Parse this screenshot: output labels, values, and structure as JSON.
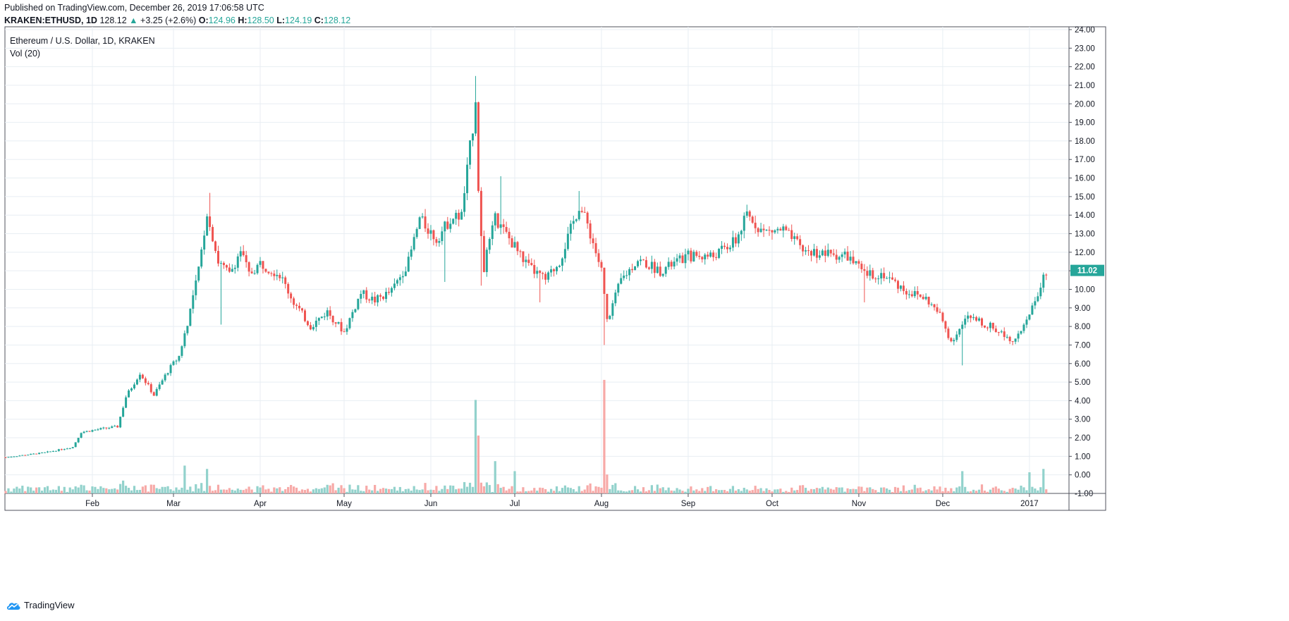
{
  "header": {
    "published": "Published on TradingView.com, December 26, 2019 17:06:58 UTC",
    "symbol": "KRAKEN:ETHUSD, 1D",
    "last": "128.12",
    "change_arrow": "▲",
    "change": "+3.25 (+2.6%)",
    "o_label": "O:",
    "o": "124.96",
    "h_label": "H:",
    "h": "128.50",
    "l_label": "L:",
    "l": "124.19",
    "c_label": "C:",
    "c": "128.12"
  },
  "legend": {
    "title": "Ethereum / U.S. Dollar, 1D, KRAKEN",
    "volume": "Vol (20)"
  },
  "footer": {
    "brand": "TradingView",
    "icon": "tradingview-cloud-icon"
  },
  "colors": {
    "up": "#26a69a",
    "down": "#ef5350",
    "up_vol": "#92d2cc",
    "down_vol": "#f7a9a7",
    "grid": "#e8eef3",
    "axis": "#131722"
  },
  "chart_data": {
    "type": "candlestick",
    "ylim": [
      -1,
      24
    ],
    "y_ticks": [
      "24.00",
      "23.00",
      "22.00",
      "21.00",
      "20.00",
      "19.00",
      "18.00",
      "17.00",
      "16.00",
      "15.00",
      "14.00",
      "13.00",
      "12.00",
      "11.00",
      "10.00",
      "9.00",
      "8.00",
      "7.00",
      "6.00",
      "5.00",
      "4.00",
      "3.00",
      "2.00",
      "1.00",
      "0.00",
      "-1.00"
    ],
    "y_tick_values": [
      24,
      23,
      22,
      21,
      20,
      19,
      18,
      17,
      16,
      15,
      14,
      13,
      12,
      11,
      10,
      9,
      8,
      7,
      6,
      5,
      4,
      3,
      2,
      1,
      0,
      -1
    ],
    "x_ticks": [
      "Feb",
      "Mar",
      "Apr",
      "May",
      "Jun",
      "Jul",
      "Aug",
      "Sep",
      "Oct",
      "Nov",
      "Dec",
      "2017"
    ],
    "x_tick_dates": [
      "2016-02-01",
      "2016-03-01",
      "2016-04-01",
      "2016-05-01",
      "2016-06-01",
      "2016-07-01",
      "2016-08-01",
      "2016-09-01",
      "2016-10-01",
      "2016-11-01",
      "2016-12-01",
      "2017-01-01"
    ],
    "last_price_label": "11.02",
    "last_price": 11.02,
    "x_range": [
      "2016-01-01",
      "2017-01-07"
    ],
    "price_path": [
      [
        "2016-01-01",
        0.95
      ],
      [
        "2016-01-15",
        1.2
      ],
      [
        "2016-01-25",
        1.5
      ],
      [
        "2016-01-28",
        2.3
      ],
      [
        "2016-02-05",
        2.5
      ],
      [
        "2016-02-10",
        2.6
      ],
      [
        "2016-02-13",
        4.2
      ],
      [
        "2016-02-18",
        5.5
      ],
      [
        "2016-02-23",
        4.3
      ],
      [
        "2016-02-28",
        5.6
      ],
      [
        "2016-03-03",
        6.4
      ],
      [
        "2016-03-06",
        8.2
      ],
      [
        "2016-03-10",
        11.0
      ],
      [
        "2016-03-13",
        14.2
      ],
      [
        "2016-03-17",
        11.5
      ],
      [
        "2016-03-21",
        10.8
      ],
      [
        "2016-03-25",
        12.1
      ],
      [
        "2016-03-28",
        10.8
      ],
      [
        "2016-04-01",
        11.4
      ],
      [
        "2016-04-08",
        10.8
      ],
      [
        "2016-04-13",
        9.3
      ],
      [
        "2016-04-19",
        8.0
      ],
      [
        "2016-04-25",
        8.8
      ],
      [
        "2016-05-01",
        7.7
      ],
      [
        "2016-05-07",
        9.8
      ],
      [
        "2016-05-12",
        9.4
      ],
      [
        "2016-05-18",
        9.9
      ],
      [
        "2016-05-24",
        11.5
      ],
      [
        "2016-05-28",
        13.8
      ],
      [
        "2016-06-03",
        12.7
      ],
      [
        "2016-06-08",
        13.8
      ],
      [
        "2016-06-12",
        14.0
      ],
      [
        "2016-06-16",
        18.8
      ],
      [
        "2016-06-17",
        20.4
      ],
      [
        "2016-06-18",
        15.0
      ],
      [
        "2016-06-20",
        11.2
      ],
      [
        "2016-06-24",
        13.8
      ],
      [
        "2016-07-01",
        12.3
      ],
      [
        "2016-07-06",
        11.2
      ],
      [
        "2016-07-12",
        10.5
      ],
      [
        "2016-07-17",
        11.5
      ],
      [
        "2016-07-24",
        14.5
      ],
      [
        "2016-07-27",
        13.5
      ],
      [
        "2016-08-01",
        11.0
      ],
      [
        "2016-08-03",
        8.3
      ],
      [
        "2016-08-08",
        10.5
      ],
      [
        "2016-08-14",
        11.6
      ],
      [
        "2016-08-22",
        11.0
      ],
      [
        "2016-09-01",
        11.8
      ],
      [
        "2016-09-10",
        11.8
      ],
      [
        "2016-09-18",
        12.6
      ],
      [
        "2016-09-22",
        14.0
      ],
      [
        "2016-09-28",
        13.1
      ],
      [
        "2016-10-05",
        13.2
      ],
      [
        "2016-10-12",
        12.1
      ],
      [
        "2016-10-20",
        11.9
      ],
      [
        "2016-10-28",
        11.8
      ],
      [
        "2016-11-03",
        10.8
      ],
      [
        "2016-11-10",
        10.8
      ],
      [
        "2016-11-18",
        9.9
      ],
      [
        "2016-11-25",
        9.5
      ],
      [
        "2016-11-30",
        8.6
      ],
      [
        "2016-12-04",
        7.2
      ],
      [
        "2016-12-10",
        8.5
      ],
      [
        "2016-12-18",
        8.0
      ],
      [
        "2016-12-26",
        7.3
      ],
      [
        "2016-12-31",
        8.2
      ],
      [
        "2017-01-04",
        9.8
      ],
      [
        "2017-01-07",
        11.0
      ]
    ],
    "spikes": {
      "2016-03-14": 15.2,
      "2016-03-18": 8.1,
      "2016-06-06": 10.4,
      "2016-06-17": 21.5,
      "2016-06-19": 10.2,
      "2016-06-26": 16.1,
      "2016-07-10": 9.3,
      "2016-07-24": 15.3,
      "2016-08-02": 7.0,
      "2016-11-03": 9.3,
      "2016-12-08": 5.9
    },
    "volume_axis_max": 5.0,
    "volume_spikes": {
      "2016-03-05": 1.25,
      "2016-03-13": 1.1,
      "2016-06-17": 4.2,
      "2016-06-18": 2.6,
      "2016-06-24": 1.45,
      "2016-07-01": 1.0,
      "2016-08-02": 5.1,
      "2016-08-03": 0.85,
      "2016-12-08": 1.0,
      "2017-01-01": 0.95,
      "2017-01-06": 1.1
    }
  }
}
